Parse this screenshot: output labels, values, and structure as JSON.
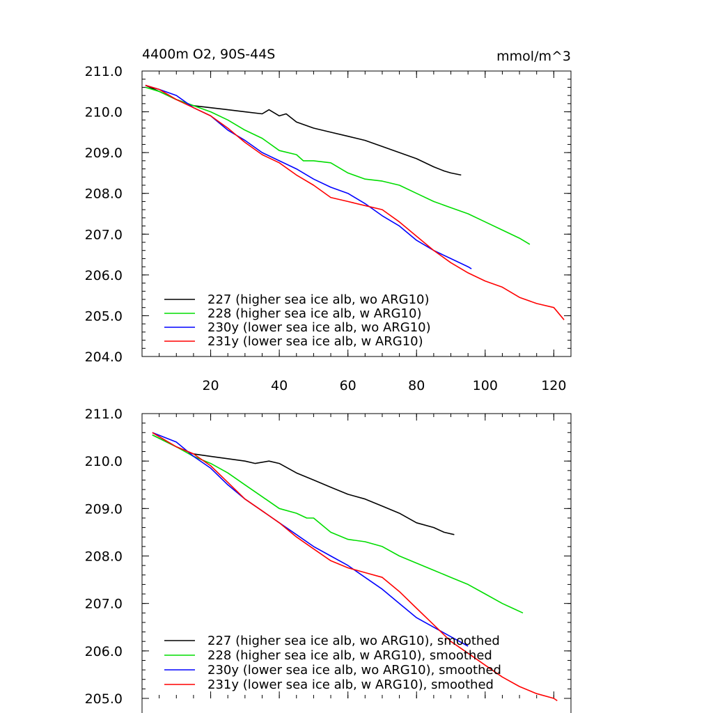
{
  "chart_data": [
    {
      "type": "line",
      "title": "4400m O2, 90S-44S",
      "units": "mmol/m^3",
      "xlim": [
        0,
        125
      ],
      "ylim": [
        204.0,
        211.0
      ],
      "xticks": [
        20,
        40,
        60,
        80,
        100,
        120
      ],
      "xtick_labels": [
        "20",
        "40",
        "60",
        "80",
        "100",
        "120"
      ],
      "yticks": [
        204.0,
        205.0,
        206.0,
        207.0,
        208.0,
        209.0,
        210.0,
        211.0
      ],
      "ytick_labels": [
        "204.0",
        "205.0",
        "206.0",
        "207.0",
        "208.0",
        "209.0",
        "210.0",
        "211.0"
      ],
      "series": [
        {
          "name": "227 (higher sea ice alb, wo ARG10)",
          "color": "#000000",
          "x": [
            1,
            5,
            10,
            15,
            20,
            25,
            30,
            35,
            37,
            40,
            42,
            45,
            50,
            55,
            60,
            65,
            70,
            75,
            80,
            85,
            88,
            90,
            93
          ],
          "y": [
            210.65,
            210.5,
            210.3,
            210.15,
            210.1,
            210.05,
            210.0,
            209.95,
            210.05,
            209.9,
            209.95,
            209.75,
            209.6,
            209.5,
            209.4,
            209.3,
            209.15,
            209.0,
            208.85,
            208.65,
            208.55,
            208.5,
            208.45
          ]
        },
        {
          "name": "228 (higher sea ice alb, w ARG10)",
          "color": "#00dd00",
          "x": [
            1,
            5,
            10,
            15,
            20,
            25,
            30,
            35,
            40,
            45,
            47,
            50,
            55,
            60,
            65,
            70,
            75,
            80,
            85,
            90,
            95,
            100,
            105,
            110,
            113
          ],
          "y": [
            210.6,
            210.5,
            210.3,
            210.15,
            210.0,
            209.8,
            209.55,
            209.35,
            209.05,
            208.95,
            208.8,
            208.8,
            208.75,
            208.5,
            208.35,
            208.3,
            208.2,
            208.0,
            207.8,
            207.65,
            207.5,
            207.3,
            207.1,
            206.9,
            206.75
          ]
        },
        {
          "name": "230y (lower sea ice alb, wo ARG10)",
          "color": "#0000ff",
          "x": [
            1,
            5,
            10,
            15,
            20,
            25,
            30,
            35,
            40,
            45,
            50,
            55,
            60,
            65,
            70,
            75,
            80,
            85,
            90,
            95,
            96
          ],
          "y": [
            210.65,
            210.55,
            210.4,
            210.1,
            209.9,
            209.55,
            209.3,
            209.0,
            208.8,
            208.6,
            208.35,
            208.15,
            208.0,
            207.75,
            207.45,
            207.2,
            206.85,
            206.6,
            206.4,
            206.2,
            206.15
          ]
        },
        {
          "name": "231y (lower sea ice alb, w ARG10)",
          "color": "#ff0000",
          "x": [
            1,
            5,
            10,
            15,
            20,
            25,
            30,
            35,
            40,
            45,
            50,
            55,
            60,
            65,
            70,
            75,
            80,
            85,
            90,
            95,
            100,
            105,
            110,
            115,
            120,
            123
          ],
          "y": [
            210.65,
            210.55,
            210.3,
            210.1,
            209.9,
            209.6,
            209.25,
            208.95,
            208.75,
            208.45,
            208.2,
            207.9,
            207.8,
            207.7,
            207.6,
            207.3,
            206.95,
            206.6,
            206.3,
            206.05,
            205.85,
            205.7,
            205.45,
            205.3,
            205.2,
            204.9
          ]
        }
      ]
    },
    {
      "type": "line",
      "title": "",
      "units": "",
      "xlim": [
        0,
        125
      ],
      "ylim": [
        205.0,
        211.0
      ],
      "xticks": [
        20,
        40,
        60,
        80,
        100,
        120
      ],
      "xtick_labels": [],
      "yticks": [
        205.0,
        206.0,
        207.0,
        208.0,
        209.0,
        210.0,
        211.0
      ],
      "ytick_labels": [
        "205.0",
        "206.0",
        "207.0",
        "208.0",
        "209.0",
        "210.0",
        "211.0"
      ],
      "series": [
        {
          "name": "227 (higher sea ice alb, wo ARG10), smoothed",
          "color": "#000000",
          "x": [
            3,
            10,
            15,
            20,
            25,
            30,
            33,
            37,
            40,
            45,
            50,
            55,
            60,
            65,
            70,
            75,
            80,
            85,
            88,
            91
          ],
          "y": [
            210.55,
            210.3,
            210.15,
            210.1,
            210.05,
            210.0,
            209.95,
            210.0,
            209.95,
            209.75,
            209.6,
            209.45,
            209.3,
            209.2,
            209.05,
            208.9,
            208.7,
            208.6,
            208.5,
            208.45
          ]
        },
        {
          "name": "228 (higher sea ice alb, w ARG10), smoothed",
          "color": "#00dd00",
          "x": [
            3,
            10,
            15,
            20,
            25,
            30,
            35,
            40,
            45,
            48,
            50,
            55,
            60,
            65,
            70,
            75,
            80,
            85,
            90,
            95,
            100,
            105,
            108,
            111
          ],
          "y": [
            210.55,
            210.3,
            210.1,
            209.95,
            209.75,
            209.5,
            209.25,
            209.0,
            208.9,
            208.8,
            208.8,
            208.5,
            208.35,
            208.3,
            208.2,
            208.0,
            207.85,
            207.7,
            207.55,
            207.4,
            207.2,
            207.0,
            206.9,
            206.8
          ]
        },
        {
          "name": "230y (lower sea ice alb, wo ARG10), smoothed",
          "color": "#0000ff",
          "x": [
            3,
            10,
            15,
            20,
            25,
            30,
            35,
            40,
            45,
            50,
            55,
            60,
            65,
            70,
            75,
            80,
            85,
            90,
            95
          ],
          "y": [
            210.6,
            210.4,
            210.1,
            209.85,
            209.5,
            209.2,
            208.95,
            208.7,
            208.45,
            208.2,
            208.0,
            207.8,
            207.55,
            207.3,
            207.0,
            206.7,
            206.5,
            206.3,
            206.1
          ]
        },
        {
          "name": "231y (lower sea ice alb, w ARG10), smoothed",
          "color": "#ff0000",
          "x": [
            3,
            10,
            15,
            20,
            25,
            30,
            35,
            40,
            45,
            50,
            55,
            60,
            65,
            70,
            75,
            80,
            85,
            90,
            95,
            100,
            105,
            110,
            115,
            120,
            121
          ],
          "y": [
            210.6,
            210.3,
            210.15,
            209.9,
            209.55,
            209.2,
            208.95,
            208.7,
            208.4,
            208.15,
            207.9,
            207.75,
            207.65,
            207.55,
            207.25,
            206.9,
            206.55,
            206.2,
            205.95,
            205.7,
            205.45,
            205.25,
            205.1,
            205.0,
            204.95
          ]
        }
      ]
    }
  ]
}
